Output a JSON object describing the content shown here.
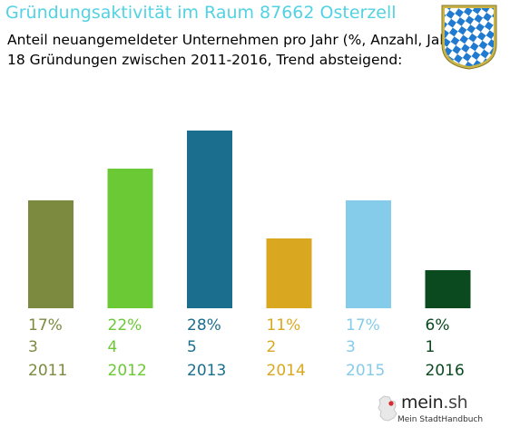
{
  "header": {
    "title": "Gründungsaktivität im Raum 87662 Osterzell",
    "subtitle_line1": "Anteil neuangemeldeter Unternehmen pro Jahr (%, Anzahl, Jahr)",
    "subtitle_line2": "18 Gründungen zwischen 2011-2016, Trend absteigend:"
  },
  "logo": {
    "brand": "mein",
    "tld": ".sh",
    "tagline": "Mein StadtHandbuch"
  },
  "colors": {
    "title": "#52d2e2",
    "crest_blue": "#1f7ad0",
    "crest_gold": "#b8a230"
  },
  "chart_data": {
    "type": "bar",
    "categories": [
      "2011",
      "2012",
      "2013",
      "2014",
      "2015",
      "2016"
    ],
    "percent_labels": [
      "17%",
      "22%",
      "28%",
      "11%",
      "17%",
      "6%"
    ],
    "values": [
      17,
      22,
      28,
      11,
      17,
      6
    ],
    "counts": [
      3,
      4,
      5,
      2,
      3,
      1
    ],
    "colors": [
      "#7b8a3e",
      "#6cc936",
      "#1b6e8d",
      "#d9a820",
      "#85cbea",
      "#0a4a1e"
    ],
    "title": "Gründungsaktivität im Raum 87662 Osterzell",
    "xlabel": "",
    "ylabel": "",
    "grid": false
  }
}
